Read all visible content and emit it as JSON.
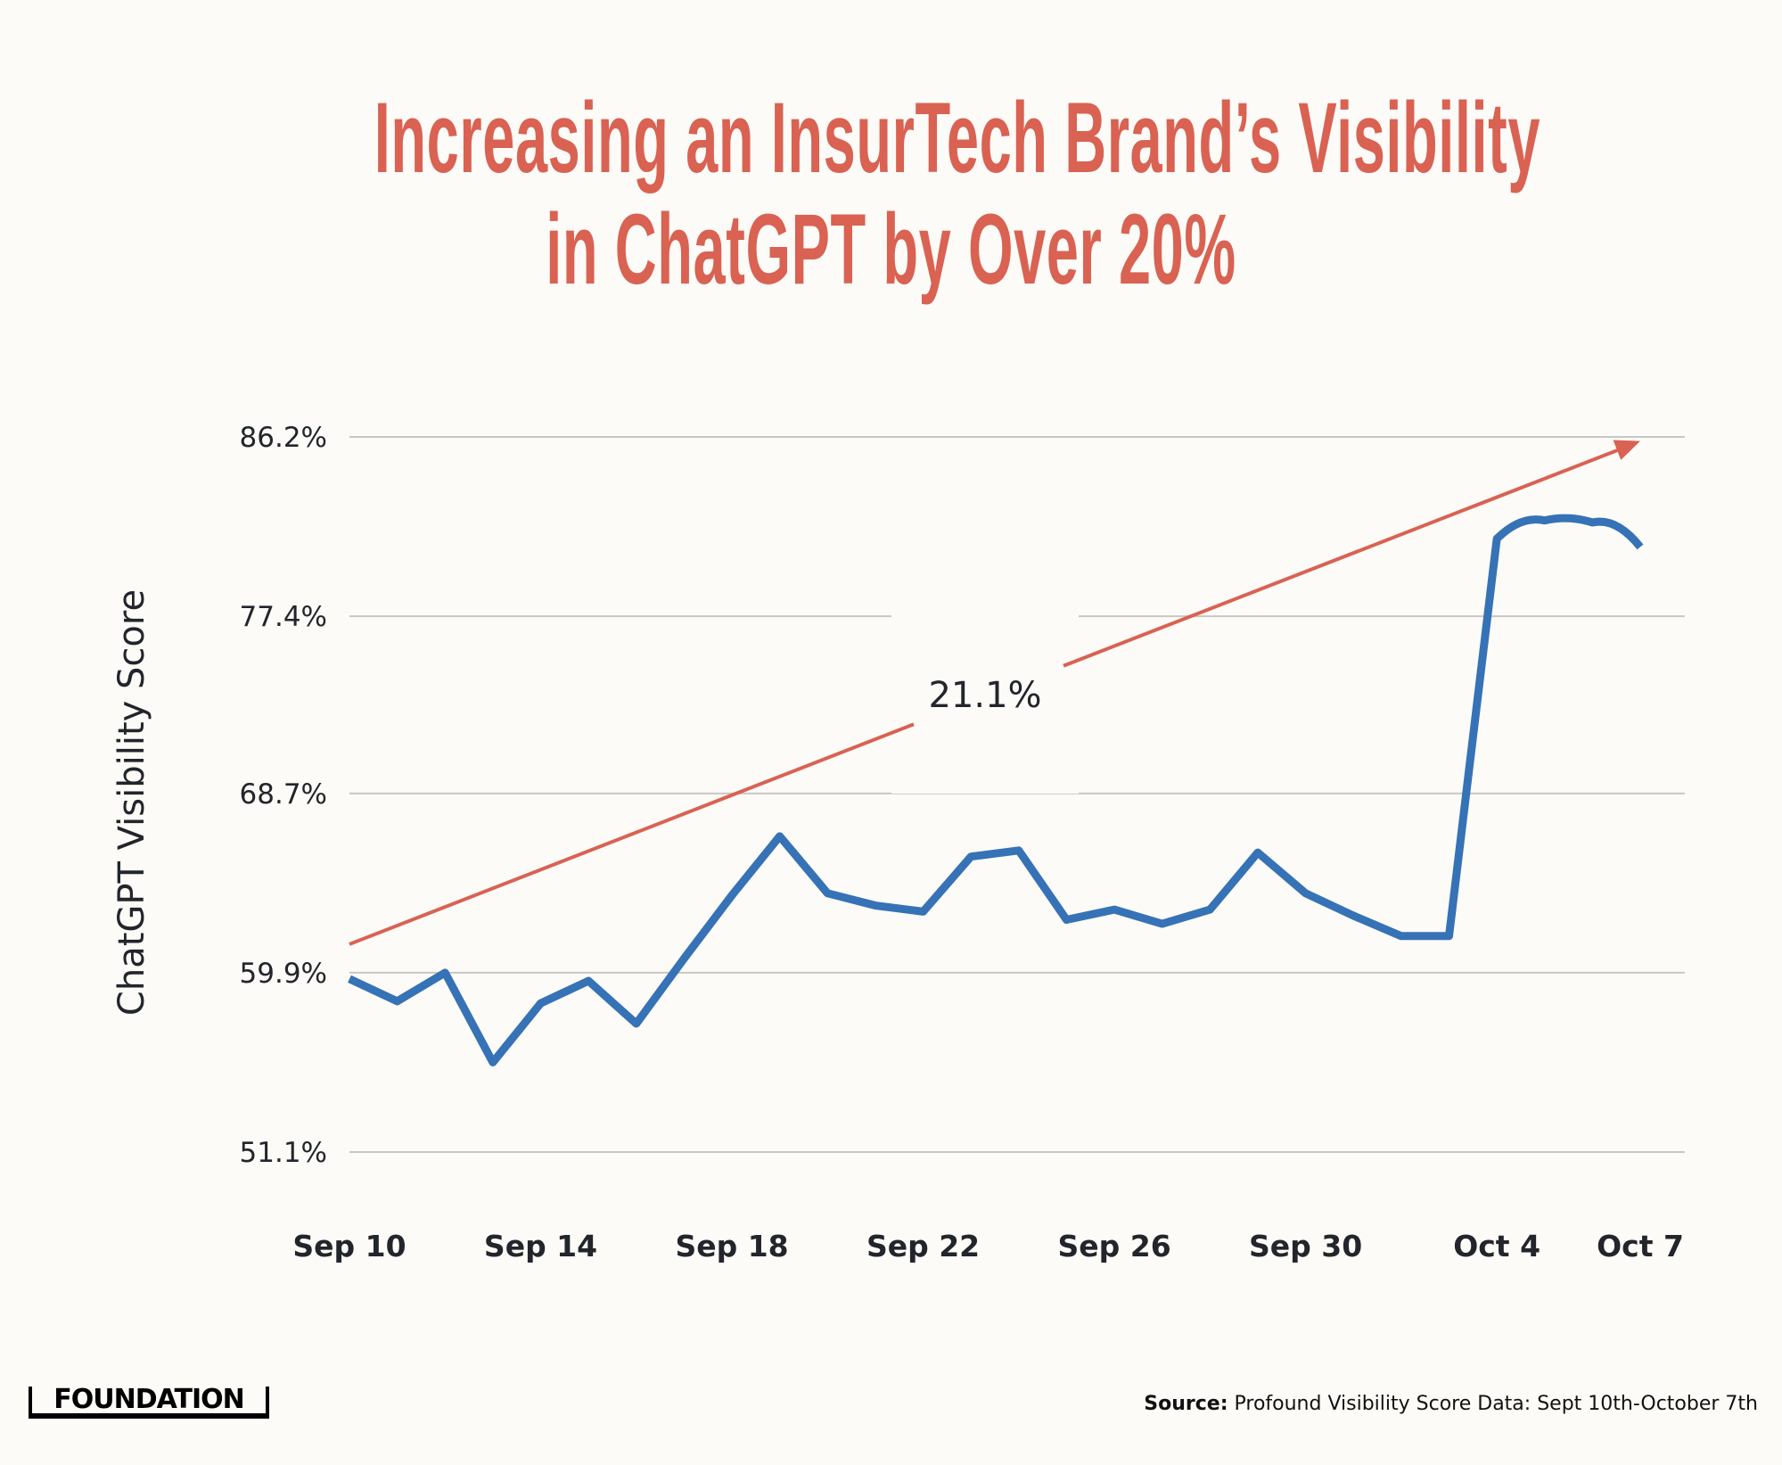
{
  "title": {
    "line1": "Increasing an InsurTech Brand’s Visibility",
    "line2": "in ChatGPT by Over 20%"
  },
  "colors": {
    "background": "#FDFBF7",
    "title": "#D96253",
    "line": "#3672B6",
    "trend_arrow": "#D96253",
    "grid": "#C9C7C3",
    "text": "#22252B"
  },
  "chart_data": {
    "type": "line",
    "title": "Increasing an InsurTech Brand’s Visibility in ChatGPT by Over 20%",
    "xlabel": "",
    "ylabel": "ChatGPT Visibility Score",
    "ylim": [
      51.1,
      86.2
    ],
    "yticks": [
      "51.1%",
      "59.9%",
      "68.7%",
      "77.4%",
      "86.2%"
    ],
    "ytick_values": [
      51.1,
      59.9,
      68.7,
      77.4,
      86.2
    ],
    "grid": true,
    "x": [
      "Sep 10",
      "Sep 11",
      "Sep 12",
      "Sep 13",
      "Sep 14",
      "Sep 15",
      "Sep 16",
      "Sep 17",
      "Sep 18",
      "Sep 19",
      "Sep 20",
      "Sep 21",
      "Sep 22",
      "Sep 23",
      "Sep 24",
      "Sep 25",
      "Sep 26",
      "Sep 27",
      "Sep 28",
      "Sep 29",
      "Sep 30",
      "Oct 1",
      "Oct 2",
      "Oct 3",
      "Oct 4",
      "Oct 5",
      "Oct 6",
      "Oct 7"
    ],
    "xticks": [
      {
        "label": "Sep 10",
        "index": 0
      },
      {
        "label": "Sep 14",
        "index": 4
      },
      {
        "label": "Sep 18",
        "index": 8
      },
      {
        "label": "Sep 22",
        "index": 12
      },
      {
        "label": "Sep 26",
        "index": 16
      },
      {
        "label": "Sep 30",
        "index": 20
      },
      {
        "label": "Oct 4",
        "index": 24
      },
      {
        "label": "Oct 7",
        "index": 27
      }
    ],
    "series": [
      {
        "name": "ChatGPT Visibility Score",
        "values": [
          59.6,
          58.5,
          59.9,
          55.5,
          58.4,
          59.5,
          57.4,
          60.6,
          63.7,
          66.6,
          63.8,
          63.2,
          62.9,
          65.6,
          65.9,
          62.5,
          63.0,
          62.3,
          63.0,
          65.8,
          63.8,
          62.7,
          61.7,
          61.7,
          81.2,
          82.1,
          82.0,
          80.8
        ]
      }
    ],
    "annotations": [
      {
        "type": "trend-arrow",
        "label": "21.1%",
        "start": {
          "index": 0,
          "value": 61.3
        },
        "end": {
          "index": 27,
          "value": 86.0
        }
      }
    ]
  },
  "footer": {
    "logo": "FOUNDATION",
    "source_label": "Source:",
    "source_text": " Profound Visibility Score Data: Sept 10th-October 7th"
  }
}
